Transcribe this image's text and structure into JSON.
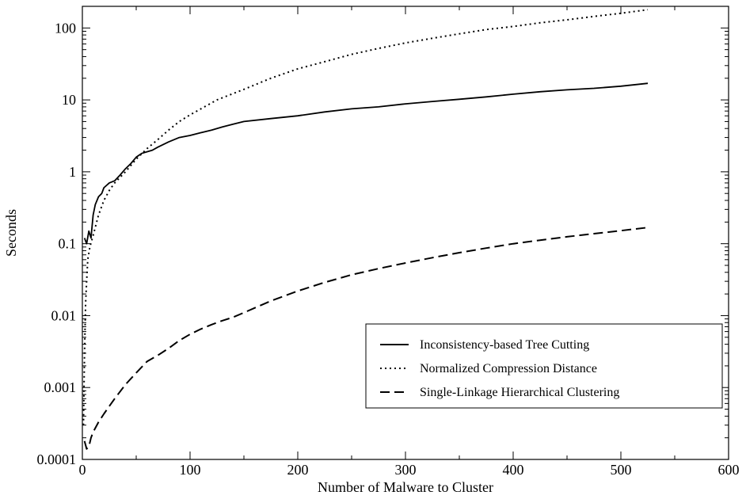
{
  "chart_data": {
    "type": "line",
    "title": "",
    "xlabel": "Number of Malware to Cluster",
    "ylabel": "Seconds",
    "xlim": [
      0,
      600
    ],
    "ylim": [
      0.0001,
      200
    ],
    "yscale": "log",
    "grid": false,
    "legend_position": "bottom-right",
    "x_ticks": [
      0,
      100,
      200,
      300,
      400,
      500,
      600
    ],
    "x_tick_labels": [
      "0",
      "100",
      "200",
      "300",
      "400",
      "500",
      "600"
    ],
    "y_ticks": [
      0.0001,
      0.001,
      0.01,
      0.1,
      1,
      10,
      100
    ],
    "y_tick_labels": [
      "0.0001",
      "0.001",
      "0.01",
      "0.1",
      "1",
      "10",
      "100"
    ],
    "series": [
      {
        "name": "Inconsistency-based Tree Cutting",
        "dash": "solid",
        "color": "#000000",
        "x": [
          2,
          4,
          6,
          8,
          10,
          12,
          15,
          18,
          20,
          25,
          30,
          35,
          40,
          45,
          50,
          55,
          60,
          65,
          70,
          80,
          90,
          100,
          110,
          120,
          130,
          140,
          150,
          175,
          200,
          225,
          250,
          275,
          300,
          325,
          350,
          375,
          400,
          425,
          450,
          475,
          500,
          525
        ],
        "y": [
          0.12,
          0.1,
          0.15,
          0.12,
          0.25,
          0.35,
          0.45,
          0.5,
          0.6,
          0.7,
          0.75,
          0.9,
          1.1,
          1.3,
          1.6,
          1.8,
          1.9,
          2.0,
          2.2,
          2.6,
          3.0,
          3.2,
          3.5,
          3.8,
          4.2,
          4.6,
          5.0,
          5.5,
          6.0,
          6.8,
          7.5,
          8.0,
          8.8,
          9.5,
          10.2,
          11.0,
          12.0,
          13.0,
          13.8,
          14.5,
          15.5,
          17.0
        ]
      },
      {
        "name": "Normalized Compression Distance",
        "dash": "dotted",
        "color": "#000000",
        "x": [
          1,
          2,
          3,
          4,
          5,
          7,
          10,
          15,
          20,
          25,
          30,
          40,
          50,
          60,
          70,
          80,
          90,
          100,
          125,
          150,
          175,
          200,
          225,
          250,
          275,
          300,
          325,
          350,
          375,
          400,
          425,
          450,
          475,
          500,
          525
        ],
        "y": [
          0.0003,
          0.003,
          0.015,
          0.03,
          0.06,
          0.09,
          0.13,
          0.25,
          0.4,
          0.55,
          0.7,
          1.0,
          1.5,
          2.1,
          2.8,
          3.8,
          5.0,
          6.2,
          10.0,
          14.0,
          20.0,
          27.0,
          34.0,
          43.0,
          52.0,
          62.0,
          72.0,
          83.0,
          95.0,
          105.0,
          118.0,
          130.0,
          145.0,
          160.0,
          180.0
        ]
      },
      {
        "name": "Single-Linkage Hierarchical Clustering",
        "dash": "dashed",
        "color": "#000000",
        "x": [
          2,
          4,
          6,
          8,
          10,
          15,
          20,
          25,
          30,
          40,
          50,
          60,
          70,
          80,
          90,
          100,
          110,
          120,
          130,
          140,
          150,
          175,
          200,
          225,
          250,
          275,
          300,
          325,
          350,
          375,
          400,
          425,
          450,
          475,
          500,
          525
        ],
        "y": [
          0.00018,
          0.00014,
          0.00015,
          0.0002,
          0.00024,
          0.00033,
          0.00043,
          0.00055,
          0.0007,
          0.0011,
          0.0016,
          0.0023,
          0.0028,
          0.0035,
          0.0045,
          0.0055,
          0.0065,
          0.0075,
          0.0085,
          0.0095,
          0.011,
          0.016,
          0.022,
          0.029,
          0.037,
          0.045,
          0.054,
          0.064,
          0.075,
          0.087,
          0.1,
          0.112,
          0.125,
          0.138,
          0.152,
          0.168
        ]
      }
    ]
  }
}
